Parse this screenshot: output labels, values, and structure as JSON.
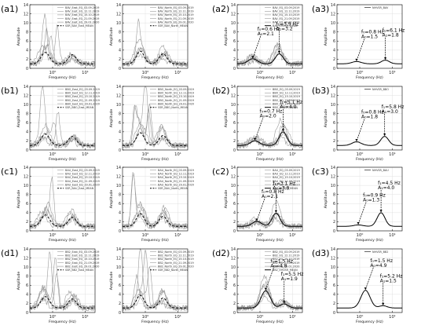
{
  "figure_type": "grid of HVSR / amplitude spectra",
  "rows": [
    {
      "panels": [
        {
          "label": "(a1)",
          "legend": [
            "BAV_East_EQ_03.09.2019",
            "BAV_East_EQ_12.11.2019",
            "BAV_East_EQ_15.10.2019",
            "BAV_East_EQ_21.09.2019",
            "BAV_East_EQ_29.01.2020",
            "SSR_BAV_East_MEAN"
          ]
        },
        {
          "label": "",
          "legend": [
            "BAV_North_EQ_03.09.2019",
            "BAV_North_EQ_12.11.2019",
            "BAV_North_EQ_15.10.2019",
            "BAV_North_EQ_21.09.2019",
            "BAV_North_EQ_29.01.2020",
            "SSR_BAV_North_MEAN"
          ]
        },
        {
          "label": "(a2)",
          "legend": [
            "BAV_EQ_03.09.2019",
            "BAV_EQ_12.11.2019",
            "BAV_EQ_15.10.2019",
            "BAV_EQ_21.09.2019",
            "BAV_EQ_29.01.2020",
            "BAV_EHVSR_MEAN"
          ],
          "annotations": [
            {
              "f": "f₀=0.6 Hz",
              "a": "A₀=2.1"
            },
            {
              "f": "f₁=3.9 Hz",
              "a": "A₁=3.2"
            }
          ]
        },
        {
          "label": "(a3)",
          "legend": [
            "NHVSR_BAV"
          ],
          "annotations": [
            {
              "f": "f₀=0.8 Hz",
              "a": "A₀=1.5"
            },
            {
              "f": "f₁=6.1 Hz",
              "a": "A₁=1.8"
            }
          ]
        }
      ]
    },
    {
      "panels": [
        {
          "label": "(b1)",
          "legend": [
            "BBO_East_EQ_03.09.2019",
            "BBO_East_EQ_12.11.2019",
            "BBO_East_EQ_15.10.2019",
            "BBO_East_EQ_21.09.2019",
            "BBO_East_EQ_29.01.2020",
            "SSR_BBO_East_MEAN"
          ]
        },
        {
          "label": "",
          "legend": [
            "BBO_North_EQ_03.09.2019",
            "BBO_North_EQ_12.11.2019",
            "BBO_North_EQ_15.10.2019",
            "BBO_North_EQ_21.09.2019",
            "BBO_North_EQ_29.01.2020",
            "SSR_BBO_North_MEAN"
          ]
        },
        {
          "label": "(b2)",
          "legend": [
            "BBO_EQ_03.09.2019",
            "BBO_EQ_12.11.2019",
            "BBO_EQ_15.10.2019",
            "BBO_EQ_21.09.2019",
            "BBO_EQ_29.01.2020",
            "BBO_EHVSR_MEAN"
          ],
          "annotations": [
            {
              "f": "f₀=0.7 Hz",
              "a": "A₀=2.0"
            },
            {
              "f": "f₁=5.1 Hz",
              "a": "A₁=4.0"
            }
          ]
        },
        {
          "label": "(b3)",
          "legend": [
            "NHVSR_BBO"
          ],
          "annotations": [
            {
              "f": "f₀=0.8 Hz",
              "a": "A₀=1.8"
            },
            {
              "f": "f₁=5.8 Hz",
              "a": "A₁=3.0"
            }
          ]
        }
      ]
    },
    {
      "panels": [
        {
          "label": "(c1)",
          "legend": [
            "BAU_East_EQ_03.09.2019",
            "BAU_East_EQ_12.11.2019",
            "BAU_East_EQ_15.10.2019",
            "BAU_East_EQ_21.09.2019",
            "BAU_East_EQ_29.01.2020",
            "SSR_BAU_East_MEAN"
          ]
        },
        {
          "label": "",
          "legend": [
            "BAU_North_EQ_03.09.2019",
            "BAU_North_EQ_12.11.2019",
            "BAU_North_EQ_15.10.2019",
            "BAU_North_EQ_21.09.2019",
            "BAU_North_EQ_29.01.2020",
            "SSR_BAU_North_MEAN"
          ]
        },
        {
          "label": "(c2)",
          "legend": [
            "BAU_EQ_03.09.2019",
            "BAU_EQ_12.11.2019",
            "BAU_EQ_15.10.2019",
            "BAU_EQ_21.09.2019",
            "BAU_EQ_29.01.2020",
            "BAU_EHVSR_MEAN"
          ],
          "annotations": [
            {
              "f": "f₀=0.8 Hz",
              "a": "A₀=2.1"
            },
            {
              "f": "f₁=3.1 Hz",
              "a": "A₁=3.9"
            }
          ]
        },
        {
          "label": "(c3)",
          "legend": [
            "NHVSR_BAU"
          ],
          "annotations": [
            {
              "f": "f₀=0.9 Hz",
              "a": "A₀=1.3"
            },
            {
              "f": "f₁=4.5 Hz",
              "a": "A₁=4.0"
            }
          ]
        }
      ]
    },
    {
      "panels": [
        {
          "label": "(d1)",
          "legend": [
            "BB2_East_EQ_03.09.2019",
            "BB2_East_EQ_12.11.2019",
            "BB2_East_EQ_15.10.2019",
            "BB2_East_EQ_21.09.2019",
            "BB2_East_EQ_29.01.2020",
            "SSR_BB2_East_MEAN"
          ]
        },
        {
          "label": "",
          "legend": [
            "BB2_North_EQ_03.09.2019",
            "BB2_North_EQ_12.11.2019",
            "BB2_North_EQ_15.10.2019",
            "BB2_North_EQ_21.09.2019",
            "BB2_North_EQ_29.01.2020",
            "SSR_BB2_North_MEAN"
          ]
        },
        {
          "label": "(d2)",
          "legend": [
            "BB2_EQ_03.09.2019",
            "BB2_EQ_12.11.2019",
            "BB2_EQ_15.10.2019",
            "BB2_EQ_21.09.2019",
            "BB2_EQ_29.01.2020",
            "BB2_EHVSR_MEAN"
          ],
          "annotations": [
            {
              "f": "f₀=1.5 Hz",
              "a": "A₀=4.8"
            },
            {
              "f": "f₁=5.5 Hz",
              "a": "A₁=1.9"
            }
          ]
        },
        {
          "label": "(d3)",
          "legend": [
            "NHVSR_BB2"
          ],
          "annotations": [
            {
              "f": "f₀=1.5 Hz",
              "a": "A₀=4.9"
            },
            {
              "f": "f₁=5.2 Hz",
              "a": "A₁=1.5"
            }
          ]
        }
      ]
    }
  ],
  "chart_data": {
    "type": "line",
    "xscale": "log",
    "xlabel": "Frequency (Hz)",
    "ylabel": "Amplitude",
    "xlim": [
      0.2,
      20
    ],
    "ylim": [
      0,
      14
    ],
    "xticks": [
      "10⁰",
      "10¹"
    ],
    "yticks": [
      "0",
      "2",
      "4",
      "6",
      "8",
      "10",
      "12",
      "14"
    ],
    "grid": true,
    "legend_placement": "top-right",
    "colors": {
      "event_curves": "#9a9a9a",
      "mean_curve": "#000000",
      "axis": "#000000",
      "grid": "#d9d9d9"
    }
  }
}
